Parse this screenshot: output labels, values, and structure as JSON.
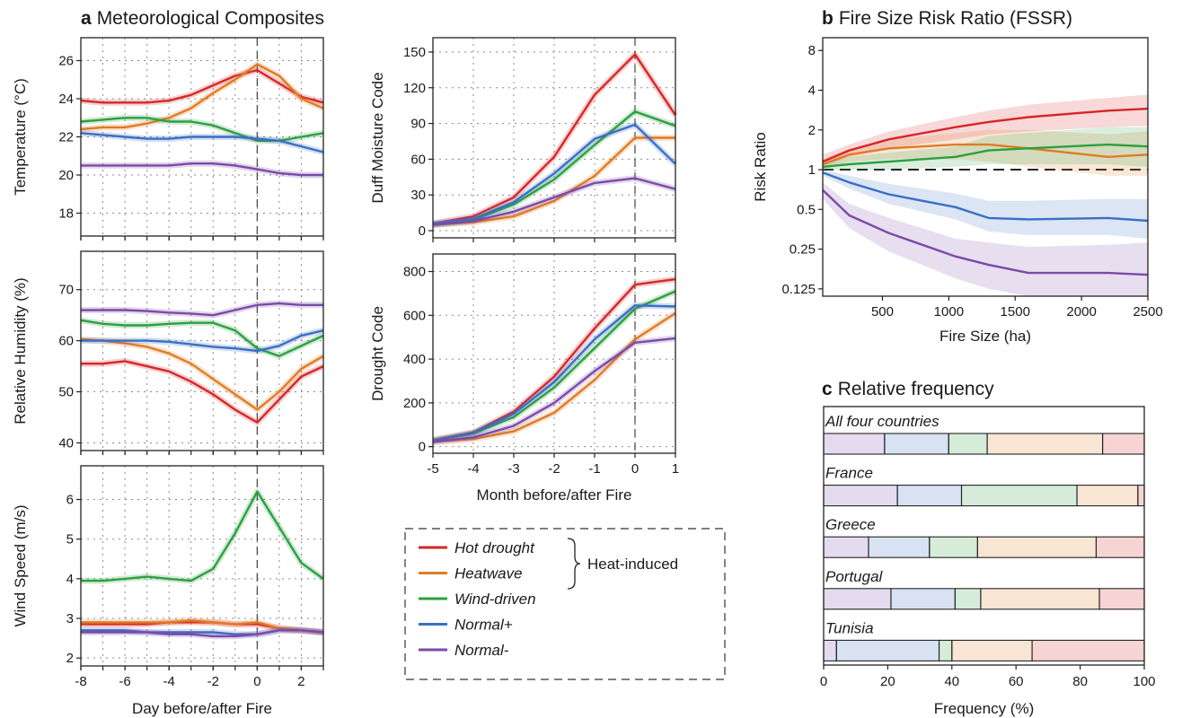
{
  "colors": {
    "hot_drought": "#d62728",
    "heatwave": "#e07b24",
    "wind_driven": "#2ca040",
    "normal_plus": "#3a6fc4",
    "normal_minus": "#7b4aa8"
  },
  "panel_a": {
    "letter": "a",
    "title": "Meteorological Composites",
    "day_xlabel": "Day before/after Fire",
    "month_xlabel": "Month before/after Fire"
  },
  "panel_b": {
    "letter": "b",
    "title": "Fire Size Risk Ratio (FSSR)"
  },
  "panel_c": {
    "letter": "c",
    "title": "Relative frequency"
  },
  "legend": {
    "items": [
      {
        "key": "hot_drought",
        "label": "Hot drought"
      },
      {
        "key": "heatwave",
        "label": "Heatwave"
      },
      {
        "key": "wind_driven",
        "label": "Wind-driven"
      },
      {
        "key": "normal_plus",
        "label": "Normal+"
      },
      {
        "key": "normal_minus",
        "label": "Normal-"
      }
    ],
    "brace_label": "Heat-induced"
  },
  "chart_data": [
    {
      "id": "temperature",
      "type": "line",
      "ylabel": "Temperature (°C)",
      "xlabel": "Day before/after Fire",
      "xlim": [
        -8,
        3
      ],
      "ylim": [
        16.8,
        27.2
      ],
      "yticks": [
        18,
        20,
        22,
        24,
        26
      ],
      "xticks": [
        -8,
        -6,
        -4,
        -2,
        0,
        2
      ],
      "x": [
        -8,
        -7,
        -6,
        -5,
        -4,
        -3,
        -2,
        -1,
        0,
        1,
        2,
        3
      ],
      "series": [
        {
          "name": "Hot drought",
          "key": "hot_drought",
          "values": [
            23.9,
            23.8,
            23.8,
            23.8,
            23.9,
            24.2,
            24.7,
            25.2,
            25.5,
            24.8,
            24.1,
            23.8
          ]
        },
        {
          "name": "Heatwave",
          "key": "heatwave",
          "values": [
            22.4,
            22.5,
            22.5,
            22.7,
            23.0,
            23.5,
            24.3,
            25.0,
            25.8,
            25.2,
            24.0,
            23.5
          ]
        },
        {
          "name": "Wind-driven",
          "key": "wind_driven",
          "values": [
            22.8,
            22.9,
            23.0,
            23.0,
            22.8,
            22.8,
            22.6,
            22.2,
            21.8,
            21.8,
            22.0,
            22.2
          ]
        },
        {
          "name": "Normal+",
          "key": "normal_plus",
          "values": [
            22.2,
            22.1,
            22.0,
            21.9,
            21.9,
            22.0,
            22.0,
            22.0,
            21.9,
            21.8,
            21.5,
            21.2
          ]
        },
        {
          "name": "Normal-",
          "key": "normal_minus",
          "values": [
            20.5,
            20.5,
            20.5,
            20.5,
            20.5,
            20.6,
            20.6,
            20.5,
            20.3,
            20.1,
            20.0,
            20.0
          ]
        }
      ]
    },
    {
      "id": "humidity",
      "type": "line",
      "ylabel": "Relative Humidity (%)",
      "xlabel": "Day before/after Fire",
      "xlim": [
        -8,
        3
      ],
      "ylim": [
        38.5,
        77.5
      ],
      "yticks": [
        40,
        50,
        60,
        70
      ],
      "xticks": [
        -8,
        -6,
        -4,
        -2,
        0,
        2
      ],
      "x": [
        -8,
        -7,
        -6,
        -5,
        -4,
        -3,
        -2,
        -1,
        0,
        1,
        2,
        3
      ],
      "series": [
        {
          "name": "Hot drought",
          "key": "hot_drought",
          "values": [
            55.5,
            55.5,
            56.0,
            55.0,
            54.0,
            52.0,
            49.5,
            46.5,
            44.0,
            48.5,
            53.0,
            55.0
          ]
        },
        {
          "name": "Heatwave",
          "key": "heatwave",
          "values": [
            60.3,
            60.0,
            59.5,
            58.8,
            57.5,
            55.5,
            52.5,
            49.5,
            46.5,
            50.0,
            54.5,
            57.0
          ]
        },
        {
          "name": "Wind-driven",
          "key": "wind_driven",
          "values": [
            64.0,
            63.3,
            63.0,
            63.0,
            63.3,
            63.5,
            63.5,
            62.0,
            58.5,
            57.0,
            59.0,
            61.0
          ]
        },
        {
          "name": "Normal+",
          "key": "normal_plus",
          "values": [
            60.0,
            60.0,
            60.0,
            60.0,
            59.8,
            59.3,
            58.8,
            58.5,
            58.0,
            59.0,
            61.0,
            62.0
          ]
        },
        {
          "name": "Normal-",
          "key": "normal_minus",
          "values": [
            66.0,
            66.0,
            66.0,
            65.8,
            65.5,
            65.3,
            65.0,
            66.0,
            67.0,
            67.3,
            67.0,
            67.0
          ]
        }
      ]
    },
    {
      "id": "wind",
      "type": "line",
      "ylabel": "Wind Speed (m/s)",
      "xlabel": "Day before/after Fire",
      "xlim": [
        -8,
        3
      ],
      "ylim": [
        1.8,
        6.85
      ],
      "yticks": [
        2,
        3,
        4,
        5,
        6
      ],
      "xticks": [
        -8,
        -6,
        -4,
        -2,
        0,
        2
      ],
      "x": [
        -8,
        -7,
        -6,
        -5,
        -4,
        -3,
        -2,
        -1,
        0,
        1,
        2,
        3
      ],
      "series": [
        {
          "name": "Hot drought",
          "key": "hot_drought",
          "values": [
            2.85,
            2.85,
            2.85,
            2.85,
            2.9,
            2.9,
            2.9,
            2.85,
            2.85,
            2.75,
            2.7,
            2.65
          ]
        },
        {
          "name": "Heatwave",
          "key": "heatwave",
          "values": [
            2.9,
            2.9,
            2.9,
            2.9,
            2.9,
            2.95,
            2.9,
            2.85,
            2.9,
            2.75,
            2.7,
            2.65
          ]
        },
        {
          "name": "Wind-driven",
          "key": "wind_driven",
          "values": [
            3.95,
            3.95,
            4.0,
            4.05,
            4.0,
            3.95,
            4.25,
            5.15,
            6.2,
            5.3,
            4.4,
            4.0
          ]
        },
        {
          "name": "Normal+",
          "key": "normal_plus",
          "values": [
            2.7,
            2.7,
            2.7,
            2.65,
            2.65,
            2.65,
            2.65,
            2.6,
            2.6,
            2.7,
            2.7,
            2.65
          ]
        },
        {
          "name": "Normal-",
          "key": "normal_minus",
          "values": [
            2.65,
            2.65,
            2.65,
            2.65,
            2.6,
            2.6,
            2.55,
            2.55,
            2.6,
            2.7,
            2.7,
            2.65
          ]
        }
      ]
    },
    {
      "id": "dmc",
      "type": "line",
      "ylabel": "Duff Moisture Code",
      "xlabel": "",
      "xlim": [
        -5,
        1
      ],
      "ylim": [
        -6,
        162
      ],
      "yticks": [
        0,
        30,
        60,
        90,
        120,
        150
      ],
      "xticks": [],
      "x": [
        -5,
        -4,
        -3,
        -2,
        -1,
        0,
        1
      ],
      "series": [
        {
          "name": "Hot drought",
          "key": "hot_drought",
          "values": [
            6,
            12,
            28,
            62,
            114,
            148,
            97
          ]
        },
        {
          "name": "Heatwave",
          "key": "heatwave",
          "values": [
            5,
            7,
            12,
            25,
            46,
            78,
            78
          ]
        },
        {
          "name": "Wind-driven",
          "key": "wind_driven",
          "values": [
            5,
            9,
            22,
            43,
            72,
            100,
            88
          ]
        },
        {
          "name": "Normal+",
          "key": "normal_plus",
          "values": [
            6,
            10,
            24,
            48,
            77,
            89,
            56
          ]
        },
        {
          "name": "Normal-",
          "key": "normal_minus",
          "values": [
            5,
            8,
            16,
            28,
            40,
            44,
            35
          ]
        }
      ]
    },
    {
      "id": "dc",
      "type": "line",
      "ylabel": "Drought Code",
      "xlabel": "Month before/after Fire",
      "xlim": [
        -5,
        1
      ],
      "ylim": [
        -30,
        880
      ],
      "yticks": [
        0,
        200,
        400,
        600,
        800
      ],
      "xticks": [
        -5,
        -4,
        -3,
        -2,
        -1,
        0,
        1
      ],
      "x": [
        -5,
        -4,
        -3,
        -2,
        -1,
        0,
        1
      ],
      "series": [
        {
          "name": "Hot drought",
          "key": "hot_drought",
          "values": [
            30,
            65,
            160,
            320,
            540,
            740,
            765
          ]
        },
        {
          "name": "Heatwave",
          "key": "heatwave",
          "values": [
            22,
            35,
            70,
            155,
            305,
            490,
            610
          ]
        },
        {
          "name": "Wind-driven",
          "key": "wind_driven",
          "values": [
            28,
            60,
            135,
            270,
            450,
            630,
            710
          ]
        },
        {
          "name": "Normal+",
          "key": "normal_plus",
          "values": [
            28,
            62,
            150,
            295,
            490,
            645,
            640
          ]
        },
        {
          "name": "Normal-",
          "key": "normal_minus",
          "values": [
            22,
            42,
            95,
            200,
            345,
            475,
            495
          ]
        }
      ]
    },
    {
      "id": "fssr",
      "type": "line",
      "scale_y": "log2",
      "ylabel": "Risk Ratio",
      "xlabel": "Fire Size (ha)",
      "xlim": [
        50,
        2500
      ],
      "ylim": [
        0.11,
        10
      ],
      "yticks": [
        0.125,
        0.25,
        0.5,
        1,
        2,
        4,
        8
      ],
      "yticklabels": [
        "0.125",
        "0.25",
        "0.5",
        "1",
        "2",
        "4",
        "8"
      ],
      "xticks": [
        500,
        1000,
        1500,
        2000,
        2500
      ],
      "reference_line": 1,
      "x": [
        50,
        250,
        550,
        1050,
        1300,
        1600,
        2200,
        2500
      ],
      "series": [
        {
          "name": "Hot drought",
          "key": "hot_drought",
          "values": [
            1.15,
            1.4,
            1.7,
            2.1,
            2.3,
            2.5,
            2.8,
            2.9
          ],
          "lower": [
            1.05,
            1.25,
            1.45,
            1.7,
            1.85,
            1.95,
            2.1,
            2.15
          ],
          "upper": [
            1.3,
            1.55,
            1.95,
            2.5,
            2.8,
            3.1,
            3.5,
            3.7
          ]
        },
        {
          "name": "Heatwave",
          "key": "heatwave",
          "values": [
            1.1,
            1.3,
            1.45,
            1.55,
            1.55,
            1.45,
            1.25,
            1.3
          ],
          "lower": [
            1.0,
            1.15,
            1.2,
            1.2,
            1.15,
            1.05,
            0.9,
            0.9
          ],
          "upper": [
            1.2,
            1.45,
            1.7,
            1.9,
            2.0,
            2.0,
            1.85,
            1.95
          ]
        },
        {
          "name": "Wind-driven",
          "key": "wind_driven",
          "values": [
            1.05,
            1.1,
            1.15,
            1.25,
            1.4,
            1.45,
            1.55,
            1.5
          ],
          "lower": [
            0.98,
            1.0,
            1.0,
            1.05,
            1.1,
            1.1,
            1.1,
            1.05
          ],
          "upper": [
            1.15,
            1.25,
            1.35,
            1.5,
            1.8,
            1.9,
            2.1,
            2.1
          ]
        },
        {
          "name": "Normal+",
          "key": "normal_plus",
          "values": [
            0.95,
            0.8,
            0.65,
            0.52,
            0.43,
            0.42,
            0.43,
            0.41
          ],
          "lower": [
            0.9,
            0.72,
            0.55,
            0.42,
            0.34,
            0.32,
            0.32,
            0.3
          ],
          "upper": [
            1.0,
            0.9,
            0.78,
            0.66,
            0.58,
            0.58,
            0.6,
            0.6
          ]
        },
        {
          "name": "Normal-",
          "key": "normal_minus",
          "values": [
            0.7,
            0.45,
            0.33,
            0.22,
            0.19,
            0.165,
            0.165,
            0.16
          ],
          "lower": [
            0.6,
            0.36,
            0.24,
            0.15,
            0.125,
            0.11,
            0.11,
            0.11
          ],
          "upper": [
            0.8,
            0.55,
            0.43,
            0.3,
            0.28,
            0.26,
            0.27,
            0.28
          ]
        }
      ]
    },
    {
      "id": "relfreq",
      "type": "bar",
      "orientation": "horizontal-stacked",
      "xlabel": "Frequency (%)",
      "xlim": [
        0,
        100
      ],
      "xticks": [
        0,
        20,
        40,
        60,
        80,
        100
      ],
      "segment_order": [
        "Normal-",
        "Normal+",
        "Wind-driven",
        "Heatwave",
        "Hot drought"
      ],
      "segment_keys": [
        "normal_minus",
        "normal_plus",
        "wind_driven",
        "heatwave",
        "hot_drought"
      ],
      "categories": [
        "All four countries",
        "France",
        "Greece",
        "Portugal",
        "Tunisia"
      ],
      "series": [
        {
          "name": "Normal-",
          "values": [
            19,
            23,
            14,
            21,
            4
          ]
        },
        {
          "name": "Normal+",
          "values": [
            20,
            20,
            19,
            20,
            32
          ]
        },
        {
          "name": "Wind-driven",
          "values": [
            12,
            36,
            15,
            8,
            4
          ]
        },
        {
          "name": "Heatwave",
          "values": [
            36,
            19,
            37,
            37,
            25
          ]
        },
        {
          "name": "Hot drought",
          "values": [
            13,
            2,
            15,
            14,
            35
          ]
        }
      ]
    }
  ]
}
